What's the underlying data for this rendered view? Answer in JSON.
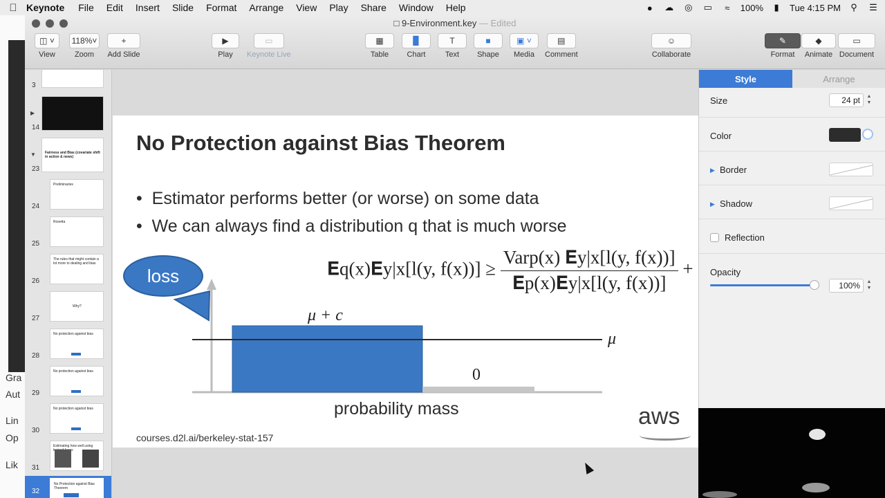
{
  "menubar": {
    "app_name": "Keynote",
    "items": [
      "File",
      "Edit",
      "Insert",
      "Slide",
      "Format",
      "Arrange",
      "View",
      "Play",
      "Share",
      "Window",
      "Help"
    ],
    "battery": "100%",
    "clock": "Tue 4:15 PM"
  },
  "background_window": {
    "labels": [
      "Gra",
      "Aut",
      "Lin",
      "Op",
      "Lik"
    ]
  },
  "window": {
    "document_title": "9-Environment.key",
    "edited_label": "— Edited"
  },
  "toolbar": {
    "view": "View",
    "zoom_value": "118%",
    "zoom": "Zoom",
    "add_slide": "Add Slide",
    "play": "Play",
    "keynote_live": "Keynote Live",
    "table": "Table",
    "chart": "Chart",
    "text": "Text",
    "shape": "Shape",
    "media": "Media",
    "comment": "Comment",
    "collaborate": "Collaborate",
    "format": "Format",
    "animate": "Animate",
    "document": "Document"
  },
  "navigator": {
    "slides": [
      {
        "num": "3"
      },
      {
        "num": "14"
      },
      {
        "num": "23",
        "text": "Fairness and Bias (covariate shift in action & news)"
      },
      {
        "num": "24",
        "text": "Preliminaries"
      },
      {
        "num": "25",
        "text": "Rosetta"
      },
      {
        "num": "26",
        "text": "The rules that might contain a lot more to dealing and bias"
      },
      {
        "num": "27",
        "text": "Why?"
      },
      {
        "num": "28",
        "text": "No protection against bias"
      },
      {
        "num": "29",
        "text": "No protection against bias"
      },
      {
        "num": "30",
        "text": "No protection against bias"
      },
      {
        "num": "31",
        "text": "Estimating how well using trained faces"
      },
      {
        "num": "32",
        "text": "No Protection against Bias Theorem"
      }
    ]
  },
  "slide": {
    "title": "No Protection against Bias Theorem",
    "bullets": [
      "Estimator performs better (or worse) on some data",
      "We can always find a distribution q that is much worse"
    ],
    "callout": "loss",
    "label_mu_c": "μ + c",
    "label_mu": "μ",
    "label_zero": "0",
    "x_label": "probability mass",
    "footer": "courses.d2l.ai/berkeley-stat-157",
    "logo": "aws",
    "formula": {
      "lhs": "𝐄q(x)𝐄y|x[l(y, f(x))] ≥",
      "numerator": "Varp(x) 𝐄y|x[l(y, f(x))]",
      "denominator": "𝐄p(x)𝐄y|x[l(y, f(x))]",
      "tail": "+ μ"
    }
  },
  "inspector": {
    "tab_style": "Style",
    "tab_arrange": "Arrange",
    "size_label": "Size",
    "size_value": "24 pt",
    "color_label": "Color",
    "border_label": "Border",
    "shadow_label": "Shadow",
    "reflection_label": "Reflection",
    "opacity_label": "Opacity",
    "opacity_value": "100%",
    "opacity_fraction": 1.0
  },
  "colors": {
    "accent": "#3c7bd6",
    "bar": "#3a78c4",
    "text_color_swatch": "#2c2c2c"
  }
}
